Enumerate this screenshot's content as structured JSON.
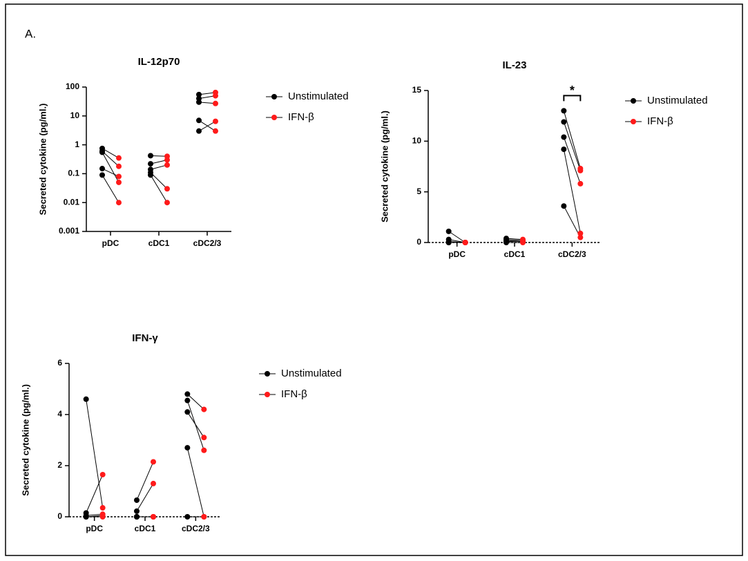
{
  "panel_label": "A.",
  "chart_data": [
    {
      "type": "paired-dot",
      "title": "IL-12p70",
      "y_label": "Secreted cytokine (pg/ml.)",
      "log_scale": true,
      "categories": [
        "pDC",
        "cDC1",
        "cDC2/3"
      ],
      "ylim": [
        0.001,
        100
      ],
      "yticks": [
        0.001,
        0.01,
        0.1,
        1,
        10,
        100
      ],
      "series": [
        {
          "name": "Unstimulated",
          "color": "#000000",
          "values": [
            [
              0.75,
              0.6,
              0.55,
              0.15,
              0.09
            ],
            [
              0.42,
              0.22,
              0.14,
              0.11,
              0.09
            ],
            [
              55,
              40,
              30,
              7,
              3
            ]
          ]
        },
        {
          "name": "IFN-β",
          "color": "#ff1a1a",
          "values": [
            [
              0.35,
              0.18,
              0.05,
              0.08,
              0.01
            ],
            [
              0.4,
              0.3,
              0.2,
              0.03,
              0.01
            ],
            [
              65,
              50,
              27,
              3,
              6.5
            ]
          ]
        }
      ]
    },
    {
      "type": "paired-dot",
      "title": "IL-23",
      "y_label": "Secreted cytokine (pg/ml.)",
      "log_scale": false,
      "categories": [
        "pDC",
        "cDC1",
        "cDC2/3"
      ],
      "ylim": [
        0,
        15
      ],
      "yticks": [
        0,
        5,
        10,
        15
      ],
      "annotation": "*",
      "series": [
        {
          "name": "Unstimulated",
          "color": "#000000",
          "values": [
            [
              1.1,
              0.3,
              0.1,
              0,
              0
            ],
            [
              0.4,
              0.3,
              0.2,
              0.1,
              0
            ],
            [
              13,
              11.9,
              10.4,
              9.2,
              3.6
            ]
          ]
        },
        {
          "name": "IFN-β",
          "color": "#ff1a1a",
          "values": [
            [
              0,
              0,
              0,
              0,
              0
            ],
            [
              0.3,
              0.2,
              0.1,
              0.1,
              0
            ],
            [
              7.3,
              7.1,
              5.8,
              0.9,
              0.5
            ]
          ]
        }
      ]
    },
    {
      "type": "paired-dot",
      "title": "IFN-γ",
      "y_label": "Secreted cytokine (pg/ml.)",
      "log_scale": false,
      "categories": [
        "pDC",
        "cDC1",
        "cDC2/3"
      ],
      "ylim": [
        0,
        6
      ],
      "yticks": [
        0,
        2,
        4,
        6
      ],
      "series": [
        {
          "name": "Unstimulated",
          "color": "#000000",
          "values": [
            [
              4.6,
              0.15,
              0.05,
              0,
              0
            ],
            [
              0.65,
              0.22,
              0,
              0,
              0
            ],
            [
              4.8,
              4.55,
              4.1,
              2.7,
              0
            ]
          ]
        },
        {
          "name": "IFN-β",
          "color": "#ff1a1a",
          "values": [
            [
              0.35,
              1.65,
              0.1,
              0,
              0.05
            ],
            [
              2.15,
              1.3,
              0,
              0,
              0
            ],
            [
              4.2,
              2.6,
              3.1,
              0,
              0
            ]
          ]
        }
      ]
    }
  ]
}
